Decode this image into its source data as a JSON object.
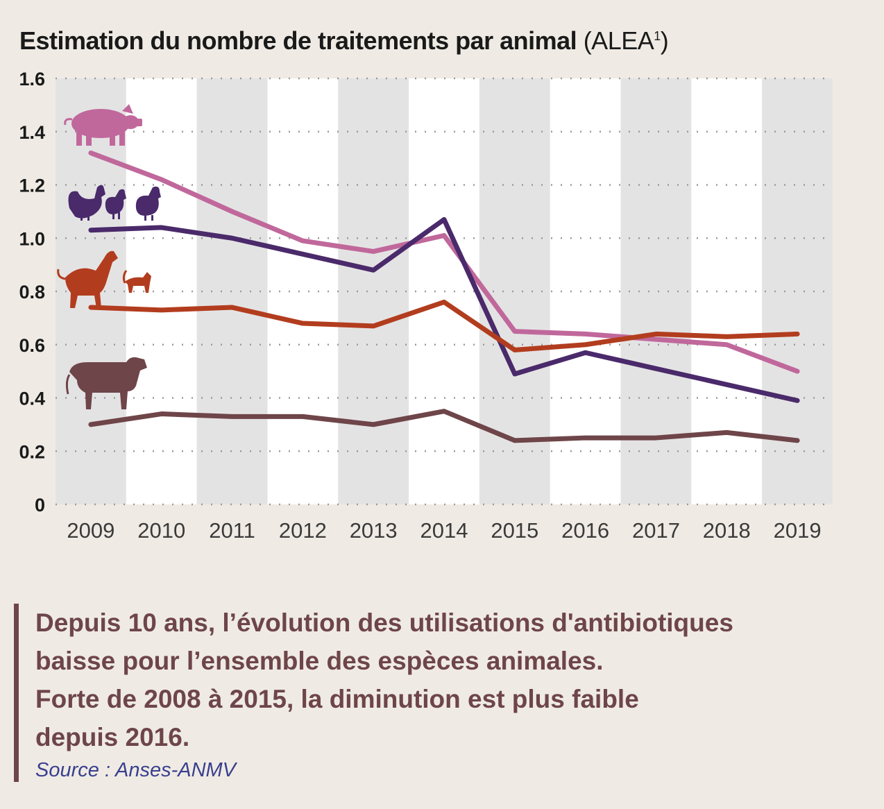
{
  "title": {
    "main": "Estimation du nombre de traitements par animal",
    "suffix": "(ALEA",
    "sup": "1",
    "close": ")"
  },
  "chart_data": {
    "type": "line",
    "title": "Estimation du nombre de traitements par animal (ALEA¹)",
    "xlabel": "",
    "ylabel": "",
    "categories": [
      "2009",
      "2010",
      "2011",
      "2012",
      "2013",
      "2014",
      "2015",
      "2016",
      "2017",
      "2018",
      "2019"
    ],
    "yticks": [
      "0",
      "0.2",
      "0.4",
      "0.6",
      "0.8",
      "1.0",
      "1.2",
      "1.4",
      "1.6"
    ],
    "ylim": [
      0,
      1.6
    ],
    "grid": "horizontal dotted, alternating vertical bands",
    "legend": "icons at left of each line",
    "series": [
      {
        "icon": "pig-icon",
        "color": "#c0689b",
        "values": [
          1.32,
          1.22,
          1.1,
          0.99,
          0.95,
          1.01,
          0.65,
          0.64,
          0.62,
          0.6,
          0.5
        ]
      },
      {
        "icon": "poultry-icon",
        "color": "#4a2a6a",
        "values": [
          1.03,
          1.04,
          1.0,
          0.94,
          0.88,
          1.07,
          0.49,
          0.57,
          0.51,
          0.45,
          0.39
        ]
      },
      {
        "icon": "dog-cat-icon",
        "color": "#b23d1e",
        "values": [
          0.74,
          0.73,
          0.74,
          0.68,
          0.67,
          0.76,
          0.58,
          0.6,
          0.64,
          0.63,
          0.64
        ]
      },
      {
        "icon": "cattle-icon",
        "color": "#6e4549",
        "values": [
          0.3,
          0.34,
          0.33,
          0.33,
          0.3,
          0.35,
          0.24,
          0.25,
          0.25,
          0.27,
          0.24
        ]
      }
    ]
  },
  "note": {
    "text": "Depuis 10 ans, l’évolution des utilisations d'antibiotiques\nbaisse pour l’ensemble des espèces animales.\nForte de 2008 à 2015, la diminution est plus faible\ndepuis 2016.",
    "source": "Source : Anses-ANMV"
  }
}
